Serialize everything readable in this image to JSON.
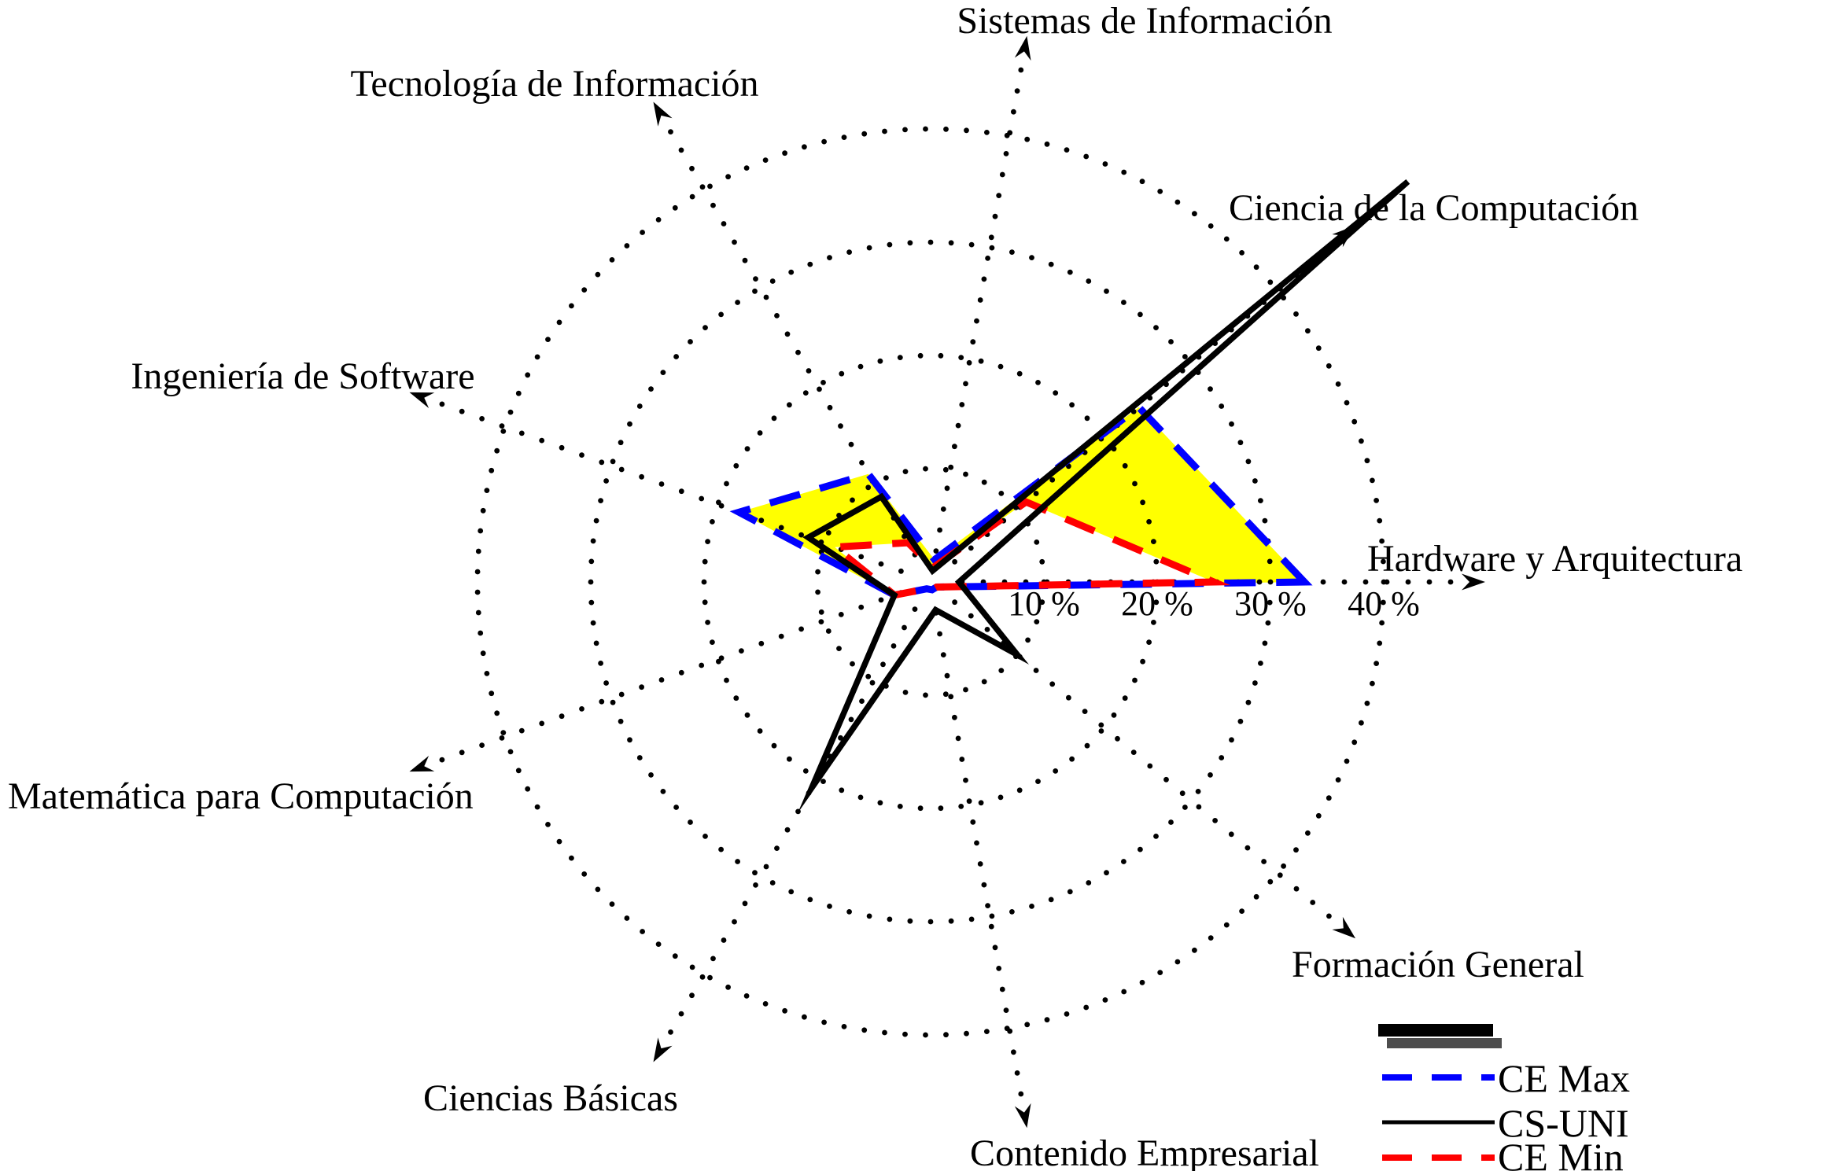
{
  "chart_data": {
    "type": "radar",
    "title": "",
    "unit": "%",
    "categories": [
      "Hardware y Arquitectura",
      "Ciencia de la Computación",
      "Sistemas de Información",
      "Tecnología de Información",
      "Ingeniería de Software",
      "Matemática para Computación",
      "Ciencias Básicas",
      "Contenido Empresarial",
      "Formación General"
    ],
    "angles_deg": [
      0,
      40,
      80,
      120,
      160,
      200,
      240,
      280,
      320
    ],
    "series": [
      {
        "name": "CE Max",
        "color": "#0000ff",
        "line_style": "dashed",
        "values": [
          33,
          24,
          2,
          11,
          18,
          3.4,
          0.7,
          0.7,
          0.7
        ]
      },
      {
        "name": "CS-UNI",
        "color": "#000000",
        "line_style": "solid",
        "values": [
          2.5,
          55,
          1,
          8.7,
          11.5,
          3.4,
          21,
          2.5,
          10
        ]
      },
      {
        "name": "CE Min",
        "color": "#ff0000",
        "line_style": "dashed",
        "values": [
          25,
          11,
          1.3,
          4,
          9,
          3.4,
          0.7,
          0.7,
          0.7
        ]
      }
    ],
    "fill_between": {
      "upper": "CE Max",
      "lower": "CE Min",
      "color": "#ffff00"
    },
    "radial_axis": {
      "tick_labels": [
        "10 %",
        "20 %",
        "30 %",
        "40 %"
      ],
      "tick_values": [
        10,
        20,
        30,
        40
      ],
      "max_shown": 40
    },
    "grid": {
      "rings": [
        10,
        20,
        30,
        40
      ],
      "style": "dotted",
      "axis_style": "dotted-arrow"
    }
  },
  "legend": {
    "items": [
      {
        "label": "CE Max",
        "color": "#0000ff",
        "style": "dashed"
      },
      {
        "label": "CS-UNI",
        "color": "#000000",
        "style": "solid"
      },
      {
        "label": "CE Min",
        "color": "#ff0000",
        "style": "dashed"
      }
    ],
    "bars": [
      {
        "color": "#000000"
      },
      {
        "color": "#4d4d4d"
      }
    ]
  }
}
